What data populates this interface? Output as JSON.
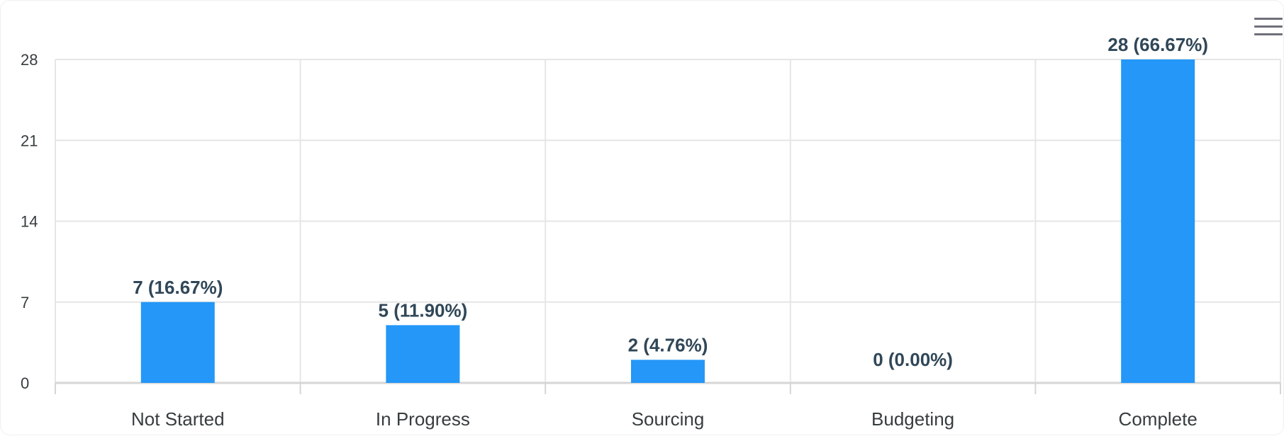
{
  "toolbar": {
    "menu_icon": "hamburger-menu-icon"
  },
  "chart_data": {
    "type": "bar",
    "categories": [
      "Not Started",
      "In Progress",
      "Sourcing",
      "Budgeting",
      "Complete"
    ],
    "values": [
      7,
      5,
      2,
      0,
      28
    ],
    "data_labels": [
      "7 (16.67%)",
      "5 (11.90%)",
      "2 (4.76%)",
      "0 (0.00%)",
      "28 (66.67%)"
    ],
    "yticks": [
      0,
      7,
      14,
      21,
      28
    ],
    "ylim": [
      0,
      28
    ],
    "grid": true,
    "bar_color": "#2497f8",
    "grid_color": "#e6e6e6",
    "title": "",
    "xlabel": "",
    "ylabel": ""
  }
}
